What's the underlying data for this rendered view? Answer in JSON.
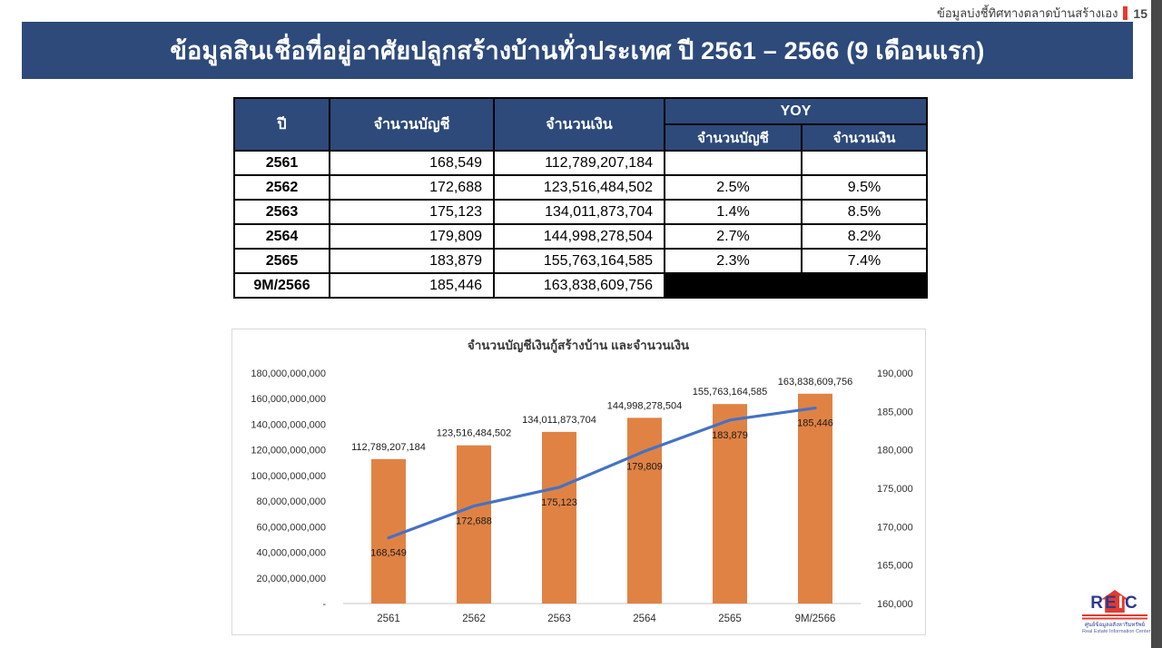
{
  "page": {
    "header_right_label": "ข้อมูลบ่งชี้ทิศทางตลาดบ้านสร้างเอง",
    "page_number": "15",
    "banner_title": "ข้อมูลสินเชื่อที่อยู่อาศัยปลูกสร้างบ้านทั่วประเทศ ปี 2561 – 2566 (9 เดือนแรก)",
    "colors": {
      "banner_navy": "#2d4a7a",
      "accent_red": "#e8392e",
      "side_strip_gray": "#474747"
    }
  },
  "table": {
    "columns": {
      "year": "ปี",
      "accounts": "จำนวนบัญชี",
      "amount": "จำนวนเงิน",
      "yoy_group": "YOY",
      "yoy_accounts": "จำนวนบัญชี",
      "yoy_amount": "จำนวนเงิน"
    },
    "rows": [
      {
        "year": "2561",
        "accounts": "168,549",
        "amount": "112,789,207,184",
        "yoy_accounts": "",
        "yoy_amount": "",
        "blackout": false
      },
      {
        "year": "2562",
        "accounts": "172,688",
        "amount": "123,516,484,502",
        "yoy_accounts": "2.5%",
        "yoy_amount": "9.5%",
        "blackout": false
      },
      {
        "year": "2563",
        "accounts": "175,123",
        "amount": "134,011,873,704",
        "yoy_accounts": "1.4%",
        "yoy_amount": "8.5%",
        "blackout": false
      },
      {
        "year": "2564",
        "accounts": "179,809",
        "amount": "144,998,278,504",
        "yoy_accounts": "2.7%",
        "yoy_amount": "8.2%",
        "blackout": false
      },
      {
        "year": "2565",
        "accounts": "183,879",
        "amount": "155,763,164,585",
        "yoy_accounts": "2.3%",
        "yoy_amount": "7.4%",
        "blackout": false
      },
      {
        "year": "9M/2566",
        "accounts": "185,446",
        "amount": "163,838,609,756",
        "yoy_accounts": null,
        "yoy_amount": null,
        "blackout": true
      }
    ]
  },
  "chart_data": {
    "type": "bar",
    "subtype": "combo-bar-line-dual-axis",
    "title": "จำนวนบัญชีเงินกู้สร้างบ้าน และจำนวนเงิน",
    "categories": [
      "2561",
      "2562",
      "2563",
      "2564",
      "2565",
      "9M/2566"
    ],
    "series": [
      {
        "name": "จำนวนเงิน",
        "chart": "bar",
        "axis": "left",
        "color": "#E08244",
        "values": [
          112789207184,
          123516484502,
          134011873704,
          144998278504,
          155763164585,
          163838609756
        ]
      },
      {
        "name": "จำนวนบัญชี",
        "chart": "line",
        "axis": "right",
        "color": "#4472C4",
        "values": [
          168549,
          172688,
          175123,
          179809,
          183879,
          185446
        ]
      }
    ],
    "left_axis": {
      "min": 0,
      "max": 180000000000,
      "step": 20000000000,
      "zero_label": "-"
    },
    "right_axis": {
      "min": 160000,
      "max": 190000,
      "step": 5000
    },
    "grid": false,
    "legend": false,
    "data_labels": true
  },
  "logo": {
    "letters_left": "RE",
    "letter_mid": "I",
    "letters_right": "C",
    "thai_line": "ศูนย์ข้อมูลอสังหาริมทรัพย์",
    "english_line": "Real Estate Information Center",
    "blue": "#2b3990",
    "red": "#e13b30"
  }
}
